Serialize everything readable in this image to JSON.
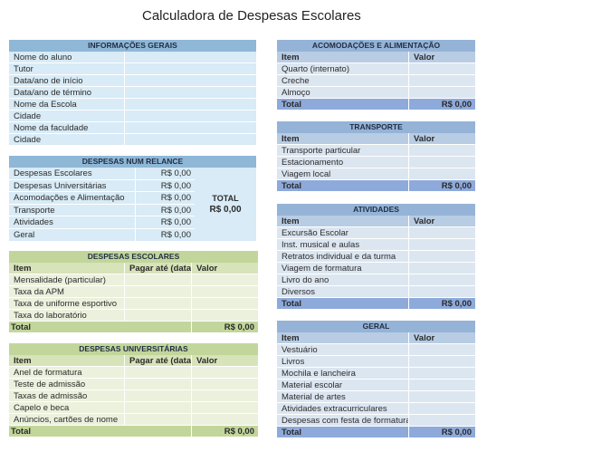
{
  "title": "Calculadora de Despesas Escolares",
  "info_gerais": {
    "header": "INFORMAÇÕES GERAIS",
    "fields": [
      "Nome do aluno",
      "Tutor",
      "Data/ano de início",
      "Data/ano de término",
      "Nome da Escola",
      "Cidade",
      "Nome da faculdade",
      "Cidade"
    ]
  },
  "num_relance": {
    "header": "DESPESAS NUM RELANCE",
    "rows": [
      {
        "label": "Despesas Escolares",
        "value": "R$ 0,00"
      },
      {
        "label": "Despesas Universitárias",
        "value": "R$ 0,00"
      },
      {
        "label": "Acomodações e Alimentação",
        "value": "R$ 0,00"
      },
      {
        "label": "Transporte",
        "value": "R$ 0,00"
      },
      {
        "label": "Atividades",
        "value": "R$ 0,00"
      },
      {
        "label": "Geral",
        "value": "R$ 0,00"
      }
    ],
    "total_label": "TOTAL",
    "total_value": "R$ 0,00"
  },
  "despesas_escolares": {
    "header": "DESPESAS ESCOLARES",
    "columns": [
      "Item",
      "Pagar até (data)",
      "Valor"
    ],
    "items": [
      "Mensalidade (particular)",
      "Taxa da APM",
      "Taxa de uniforme esportivo",
      "Taxa do laboratório"
    ],
    "total_label": "Total",
    "total_value": "R$ 0,00"
  },
  "despesas_universitarias": {
    "header": "DESPESAS UNIVERSITÁRIAS",
    "columns": [
      "Item",
      "Pagar até (data)",
      "Valor"
    ],
    "items": [
      "Anel de formatura",
      "Teste de admissão",
      "Taxas de admissão",
      "Capelo e beca",
      "Anúncios, cartões de nome"
    ],
    "total_label": "Total",
    "total_value": "R$ 0,00"
  },
  "acomodacoes": {
    "header": "ACOMODAÇÕES E ALIMENTAÇÃO",
    "columns": [
      "Item",
      "Valor"
    ],
    "items": [
      "Quarto (internato)",
      "Creche",
      "Almoço"
    ],
    "total_label": "Total",
    "total_value": "R$ 0,00"
  },
  "transporte": {
    "header": "TRANSPORTE",
    "columns": [
      "Item",
      "Valor"
    ],
    "items": [
      "Transporte particular",
      "Estacionamento",
      "Viagem local"
    ],
    "total_label": "Total",
    "total_value": "R$ 0,00"
  },
  "atividades": {
    "header": "ATIVIDADES",
    "columns": [
      "Item",
      "Valor"
    ],
    "items": [
      "Excursão Escolar",
      "Inst. musical e aulas",
      "Retratos individual e da turma",
      "Viagem de formatura",
      "Livro do ano",
      "Diversos"
    ],
    "total_label": "Total",
    "total_value": "R$ 0,00"
  },
  "geral": {
    "header": "GERAL",
    "columns": [
      "Item",
      "Valor"
    ],
    "items": [
      "Vestuário",
      "Livros",
      "Mochila e lancheira",
      "Material escolar",
      "Material de artes",
      "Atividades extracurriculares",
      "Despesas com festa de formatura"
    ],
    "total_label": "Total",
    "total_value": "R$ 0,00"
  }
}
